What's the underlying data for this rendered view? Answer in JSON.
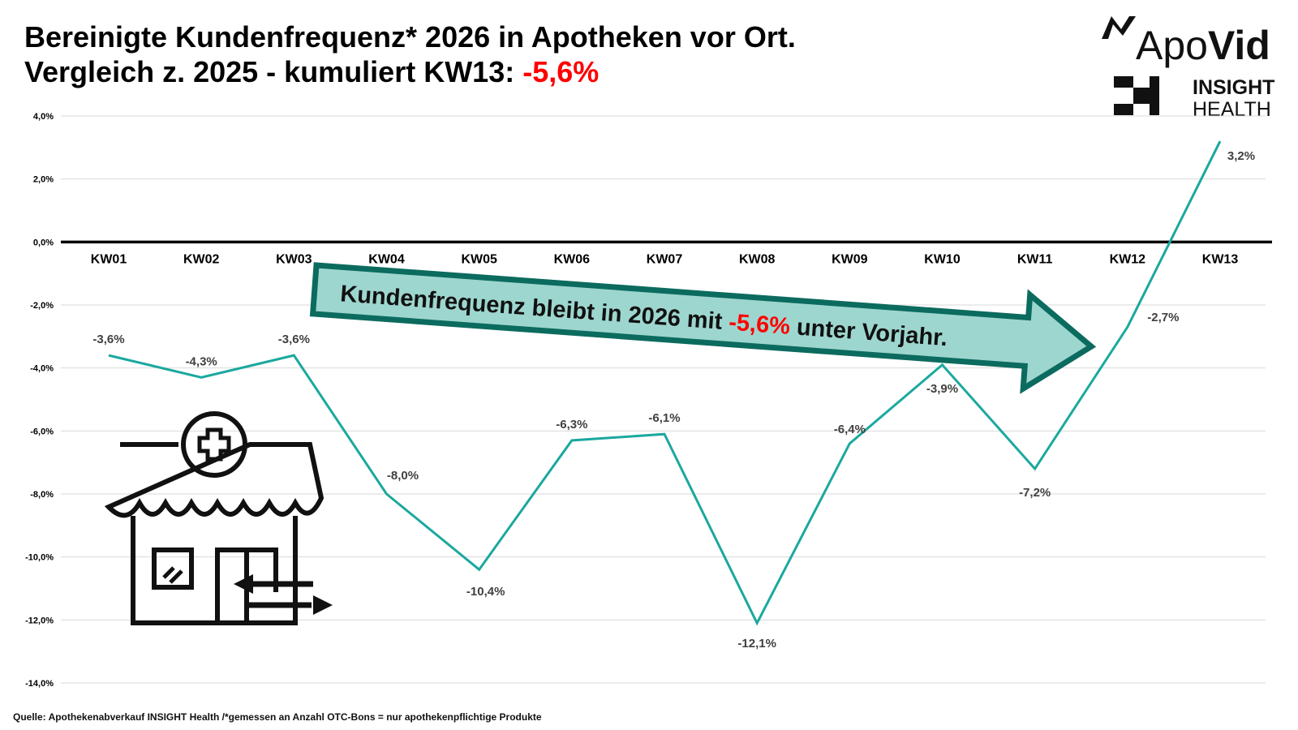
{
  "chart_data": {
    "type": "line",
    "title": "Bereinigte Kundenfrequenz* 2026 in Apotheken vor Ort.",
    "subtitle": "Vergleich z. 2025 - kumuliert KW13: ",
    "subtitle_highlight": "-5,6%",
    "annotation": {
      "before": "Kundenfrequenz bleibt in 2026 mit ",
      "highlight": "-5,6%",
      "after": " unter Vorjahr."
    },
    "source": "Quelle: Apothekenabverkauf INSIGHT Health /*gemessen an Anzahl OTC-Bons = nur apothekenpflichtige Produkte",
    "logos": {
      "apo": "Apo",
      "vid": "Vid",
      "insight": "INSIGHT",
      "health": "HEALTH"
    },
    "categories": [
      "KW01",
      "KW02",
      "KW03",
      "KW04",
      "KW05",
      "KW06",
      "KW07",
      "KW08",
      "KW09",
      "KW10",
      "KW11",
      "KW12",
      "KW13"
    ],
    "values": [
      -3.6,
      -4.3,
      -3.6,
      -8.0,
      -10.4,
      -6.3,
      -6.1,
      -12.1,
      -6.4,
      -3.9,
      -7.2,
      -2.7,
      3.2
    ],
    "value_labels": [
      "-3,6%",
      "-4,3%",
      "-3,6%",
      "-8,0%",
      "-10,4%",
      "-6,3%",
      "-6,1%",
      "-12,1%",
      "-6,4%",
      "-3,9%",
      "-7,2%",
      "-2,7%",
      "3,2%"
    ],
    "color": "#1ba89e",
    "highlight_color": "#ff0000",
    "ylim": [
      -14,
      4
    ],
    "yticks": [
      {
        "value": 4,
        "label": "4,0%"
      },
      {
        "value": 2,
        "label": "2,0%"
      },
      {
        "value": 0,
        "label": "0,0%"
      },
      {
        "value": -2,
        "label": "-2,0%"
      },
      {
        "value": -4,
        "label": "-4,0%"
      },
      {
        "value": -6,
        "label": "-6,0%"
      },
      {
        "value": -8,
        "label": "-8,0%"
      },
      {
        "value": -10,
        "label": "-10,0%"
      },
      {
        "value": -12,
        "label": "-12,0%"
      },
      {
        "value": -14,
        "label": "-14,0%"
      }
    ],
    "grid": true
  }
}
